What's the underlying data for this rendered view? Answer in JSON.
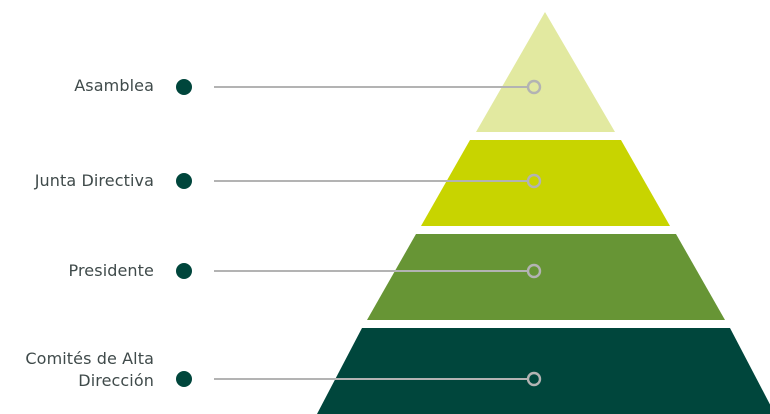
{
  "colors": {
    "tier_1": "#e2e9a0",
    "tier_2": "#c8d400",
    "tier_3": "#679535",
    "tier_4": "#00463c",
    "bullet": "#00463c",
    "connector": "#b3b3b3",
    "label_text": "#3f4a4a"
  },
  "levels": [
    {
      "label_lines": [
        "Asamblea"
      ]
    },
    {
      "label_lines": [
        "Junta Directiva"
      ]
    },
    {
      "label_lines": [
        "Presidente"
      ]
    },
    {
      "label_lines": [
        "Comités de Alta",
        "Dirección"
      ]
    }
  ]
}
